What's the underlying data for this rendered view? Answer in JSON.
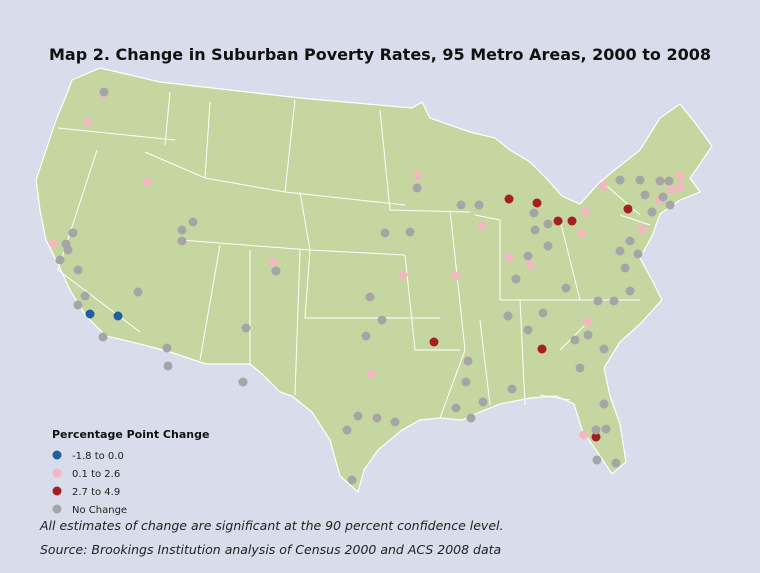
{
  "title": "Map 2. Change in Suburban Poverty Rates, 95 Metro Areas, 2000 to 2008",
  "legend": {
    "title": "Percentage Point Change",
    "items": [
      {
        "label": "-1.8 to 0.0",
        "color": "#1f5fa0"
      },
      {
        "label": "0.1 to 2.6",
        "color": "#f2b8c0"
      },
      {
        "label": "2.7 to 4.9",
        "color": "#a31f24"
      },
      {
        "label": "No Change",
        "color": "#a5a5a7"
      }
    ]
  },
  "notes": [
    "All estimates of change are significant at the 90 percent confidence level.",
    "Source: Brookings Institution analysis of Census 2000 and ACS 2008 data"
  ]
}
